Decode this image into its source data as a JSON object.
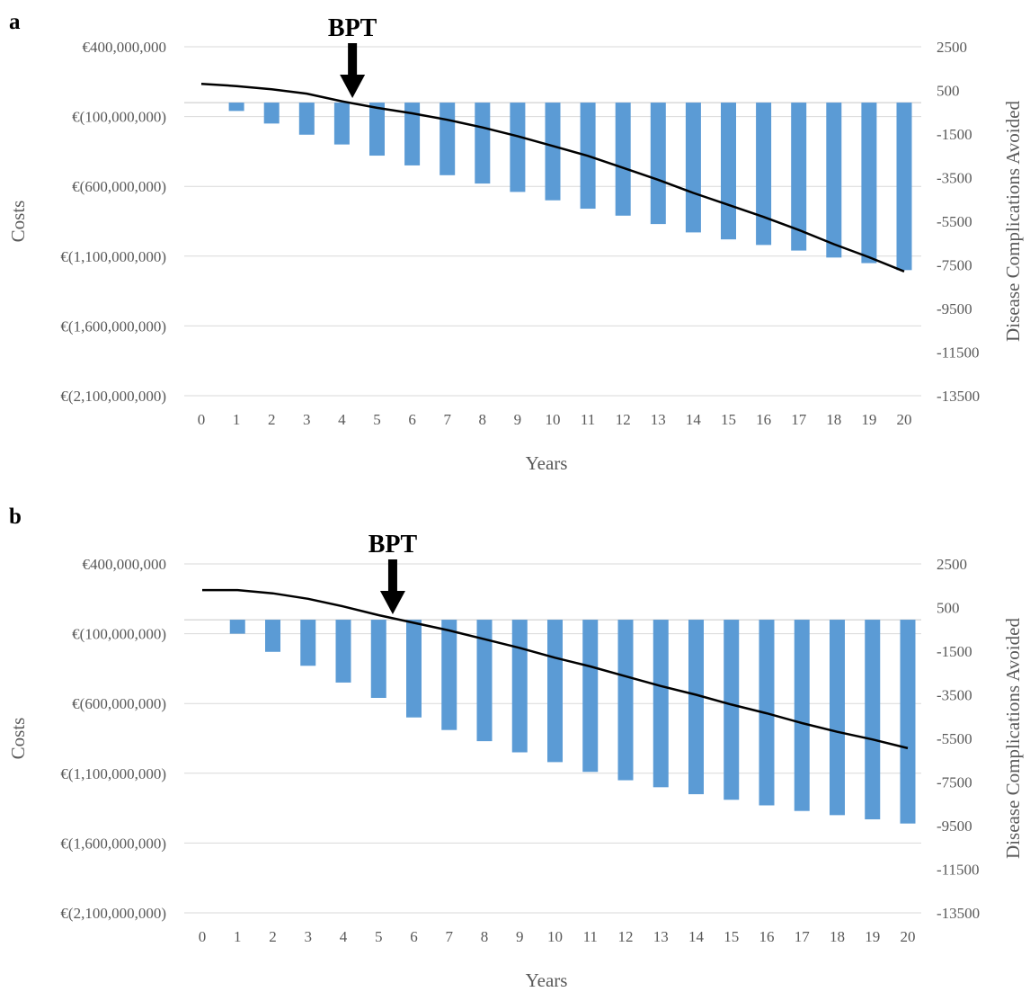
{
  "chart_data": [
    {
      "type": "bar",
      "panel_label": "a",
      "annotation": {
        "text": "BPT",
        "x": 4.3
      },
      "xlabel": "Years",
      "ylabel": "Costs",
      "y2label": "Disease Complications Avoided",
      "categories": [
        "0",
        "1",
        "2",
        "3",
        "4",
        "5",
        "6",
        "7",
        "8",
        "9",
        "10",
        "11",
        "12",
        "13",
        "14",
        "15",
        "16",
        "17",
        "18",
        "19",
        "20"
      ],
      "ylim": [
        -2100000000,
        400000000
      ],
      "y2lim": [
        -13500,
        2500
      ],
      "y_ticks": [
        400000000,
        -100000000,
        -600000000,
        -1100000000,
        -1600000000,
        -2100000000
      ],
      "y_tick_labels": [
        "€400,000,000",
        "€(100,000,000)",
        "€(600,000,000)",
        "€(1,100,000,000)",
        "€(1,600,000,000)",
        "€(2,100,000,000)"
      ],
      "y2_ticks": [
        2500,
        500,
        -1500,
        -3500,
        -5500,
        -7500,
        -9500,
        -11500,
        -13500
      ],
      "y2_tick_labels": [
        "2500",
        "500",
        "-1500",
        "-3500",
        "-5500",
        "-7500",
        "-9500",
        "-11500",
        "-13500"
      ],
      "grid": true,
      "series": [
        {
          "type": "bar",
          "axis": "left",
          "color": "#5b9bd5",
          "values": [
            0,
            -60000000,
            -150000000,
            -230000000,
            -300000000,
            -380000000,
            -450000000,
            -520000000,
            -580000000,
            -640000000,
            -700000000,
            -760000000,
            -810000000,
            -870000000,
            -930000000,
            -980000000,
            -1020000000,
            -1060000000,
            -1110000000,
            -1150000000,
            -1200000000
          ]
        },
        {
          "type": "line",
          "axis": "right",
          "color": "#000000",
          "values": [
            800,
            700,
            550,
            350,
            0,
            -300,
            -550,
            -850,
            -1200,
            -1600,
            -2050,
            -2500,
            -3050,
            -3600,
            -4200,
            -4750,
            -5300,
            -5900,
            -6550,
            -7150,
            -7800
          ]
        }
      ]
    },
    {
      "type": "bar",
      "panel_label": "b",
      "annotation": {
        "text": "BPT",
        "x": 5.4
      },
      "xlabel": "Years",
      "ylabel": "Costs",
      "y2label": "Disease Complications Avoided",
      "categories": [
        "0",
        "1",
        "2",
        "3",
        "4",
        "5",
        "6",
        "7",
        "8",
        "9",
        "10",
        "11",
        "12",
        "13",
        "14",
        "15",
        "16",
        "17",
        "18",
        "19",
        "20"
      ],
      "ylim": [
        -2100000000,
        400000000
      ],
      "y2lim": [
        -13500,
        2500
      ],
      "y_ticks": [
        400000000,
        -100000000,
        -600000000,
        -1100000000,
        -1600000000,
        -2100000000
      ],
      "y_tick_labels": [
        "€400,000,000",
        "€(100,000,000)",
        "€(600,000,000)",
        "€(1,100,000,000)",
        "€(1,600,000,000)",
        "€(2,100,000,000)"
      ],
      "y2_ticks": [
        2500,
        500,
        -1500,
        -3500,
        -5500,
        -7500,
        -9500,
        -11500,
        -13500
      ],
      "y2_tick_labels": [
        "2500",
        "500",
        "-1500",
        "-3500",
        "-5500",
        "-7500",
        "-9500",
        "-11500",
        "-13500"
      ],
      "grid": true,
      "series": [
        {
          "type": "bar",
          "axis": "left",
          "color": "#5b9bd5",
          "values": [
            0,
            -100000000,
            -230000000,
            -330000000,
            -450000000,
            -560000000,
            -700000000,
            -790000000,
            -870000000,
            -950000000,
            -1020000000,
            -1090000000,
            -1150000000,
            -1200000000,
            -1250000000,
            -1290000000,
            -1330000000,
            -1370000000,
            -1400000000,
            -1430000000,
            -1460000000
          ]
        },
        {
          "type": "line",
          "axis": "right",
          "color": "#000000",
          "values": [
            1300,
            1300,
            1150,
            900,
            550,
            150,
            -200,
            -550,
            -950,
            -1350,
            -1800,
            -2200,
            -2650,
            -3100,
            -3500,
            -3950,
            -4350,
            -4800,
            -5200,
            -5550,
            -5950
          ]
        }
      ]
    }
  ]
}
